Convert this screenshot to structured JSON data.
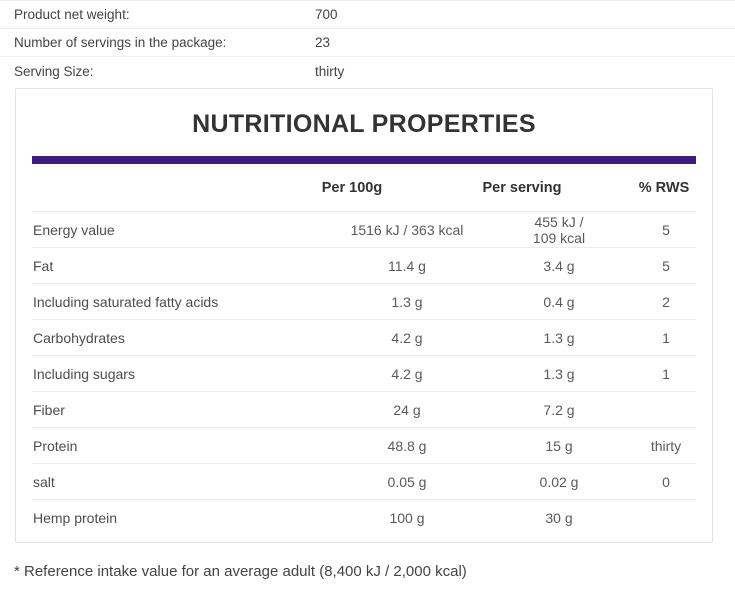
{
  "product_info": {
    "rows": [
      {
        "label": "Product net weight:",
        "value": "700"
      },
      {
        "label": "Number of servings in the package:",
        "value": "23"
      },
      {
        "label": "Serving Size:",
        "value": "thirty"
      }
    ]
  },
  "nutrition_box": {
    "title": "NUTRITIONAL PROPERTIES",
    "accent_color": "#3e1c7e",
    "table": {
      "headers": {
        "per_100g": "Per 100g",
        "per_serving": "Per serving",
        "rws": "% RWS"
      },
      "rows": [
        {
          "label": "Energy value",
          "per_100g": "1516 kJ / 363 kcal",
          "per_serving": "455 kJ / 109 kcal",
          "rws": "5"
        },
        {
          "label": "Fat",
          "per_100g": "11.4 g",
          "per_serving": "3.4 g",
          "rws": "5"
        },
        {
          "label": "Including saturated fatty acids",
          "per_100g": "1.3 g",
          "per_serving": "0.4 g",
          "rws": "2"
        },
        {
          "label": "Carbohydrates",
          "per_100g": "4.2 g",
          "per_serving": "1.3 g",
          "rws": "1"
        },
        {
          "label": "Including sugars",
          "per_100g": "4.2 g",
          "per_serving": "1.3 g",
          "rws": "1"
        },
        {
          "label": "Fiber",
          "per_100g": "24 g",
          "per_serving": "7.2 g",
          "rws": ""
        },
        {
          "label": "Protein",
          "per_100g": "48.8 g",
          "per_serving": "15 g",
          "rws": "thirty"
        },
        {
          "label": "salt",
          "per_100g": "0.05 g",
          "per_serving": "0.02 g",
          "rws": "0"
        },
        {
          "label": "Hemp protein",
          "per_100g": "100 g",
          "per_serving": "30 g",
          "rws": ""
        }
      ]
    }
  },
  "footnote": "* Reference intake value for an average adult (8,400 kJ / 2,000 kcal)"
}
